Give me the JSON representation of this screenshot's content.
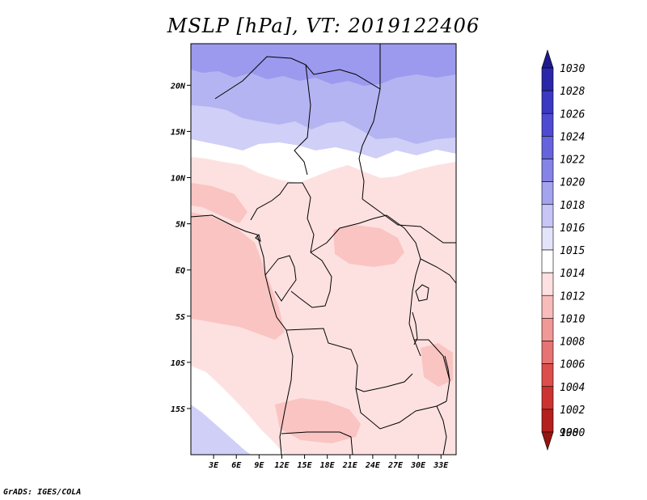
{
  "title": "MSLP [hPa], VT: 2019122406",
  "credit": "GrADS: IGES/COLA",
  "map": {
    "lon_range": [
      0,
      35
    ],
    "lat_range": [
      -20,
      24.5
    ],
    "lon_ticks": [
      {
        "lon": 3,
        "label": "3E"
      },
      {
        "lon": 6,
        "label": "6E"
      },
      {
        "lon": 9,
        "label": "9E"
      },
      {
        "lon": 12,
        "label": "12E"
      },
      {
        "lon": 15,
        "label": "15E"
      },
      {
        "lon": 18,
        "label": "18E"
      },
      {
        "lon": 21,
        "label": "21E"
      },
      {
        "lon": 24,
        "label": "24E"
      },
      {
        "lon": 27,
        "label": "27E"
      },
      {
        "lon": 30,
        "label": "30E"
      },
      {
        "lon": 33,
        "label": "33E"
      }
    ],
    "lat_ticks": [
      {
        "lat": 20,
        "label": "20N"
      },
      {
        "lat": 15,
        "label": "15N"
      },
      {
        "lat": 10,
        "label": "10N"
      },
      {
        "lat": 5,
        "label": "5N"
      },
      {
        "lat": 0,
        "label": "EQ"
      },
      {
        "lat": -5,
        "label": "5S"
      },
      {
        "lat": -10,
        "label": "10S"
      },
      {
        "lat": -15,
        "label": "15S"
      }
    ]
  },
  "colorbar": {
    "levels": [
      {
        "label": "1030",
        "color": "#1f1a8c"
      },
      {
        "label": "1028",
        "color": "#2a27a8"
      },
      {
        "label": "1026",
        "color": "#3b38c2"
      },
      {
        "label": "1024",
        "color": "#4e4bd2"
      },
      {
        "label": "1022",
        "color": "#6664dc"
      },
      {
        "label": "1020",
        "color": "#8583e6"
      },
      {
        "label": "1018",
        "color": "#a4a3ee"
      },
      {
        "label": "1016",
        "color": "#c6c5f5"
      },
      {
        "label": "1015",
        "color": "#e3e3fa"
      },
      {
        "label": "1014",
        "color": "#ffffff"
      },
      {
        "label": "1012",
        "color": "#fde0df"
      },
      {
        "label": "1010",
        "color": "#f8bcba"
      },
      {
        "label": "1008",
        "color": "#f09896"
      },
      {
        "label": "1006",
        "color": "#e67472"
      },
      {
        "label": "1004",
        "color": "#dc4e4b"
      },
      {
        "label": "1002",
        "color": "#cc3330"
      },
      {
        "label": "1000",
        "color": "#b4201d"
      },
      {
        "label": "998",
        "color": "#96150f"
      }
    ]
  },
  "colors": {
    "high_1020": "#9c9aee",
    "high_1018": "#b5b4f2",
    "high_1016": "#cfcff7",
    "neutral": "#ffffff",
    "low_1012": "#fde1e0",
    "low_1010": "#f9c4c2"
  }
}
